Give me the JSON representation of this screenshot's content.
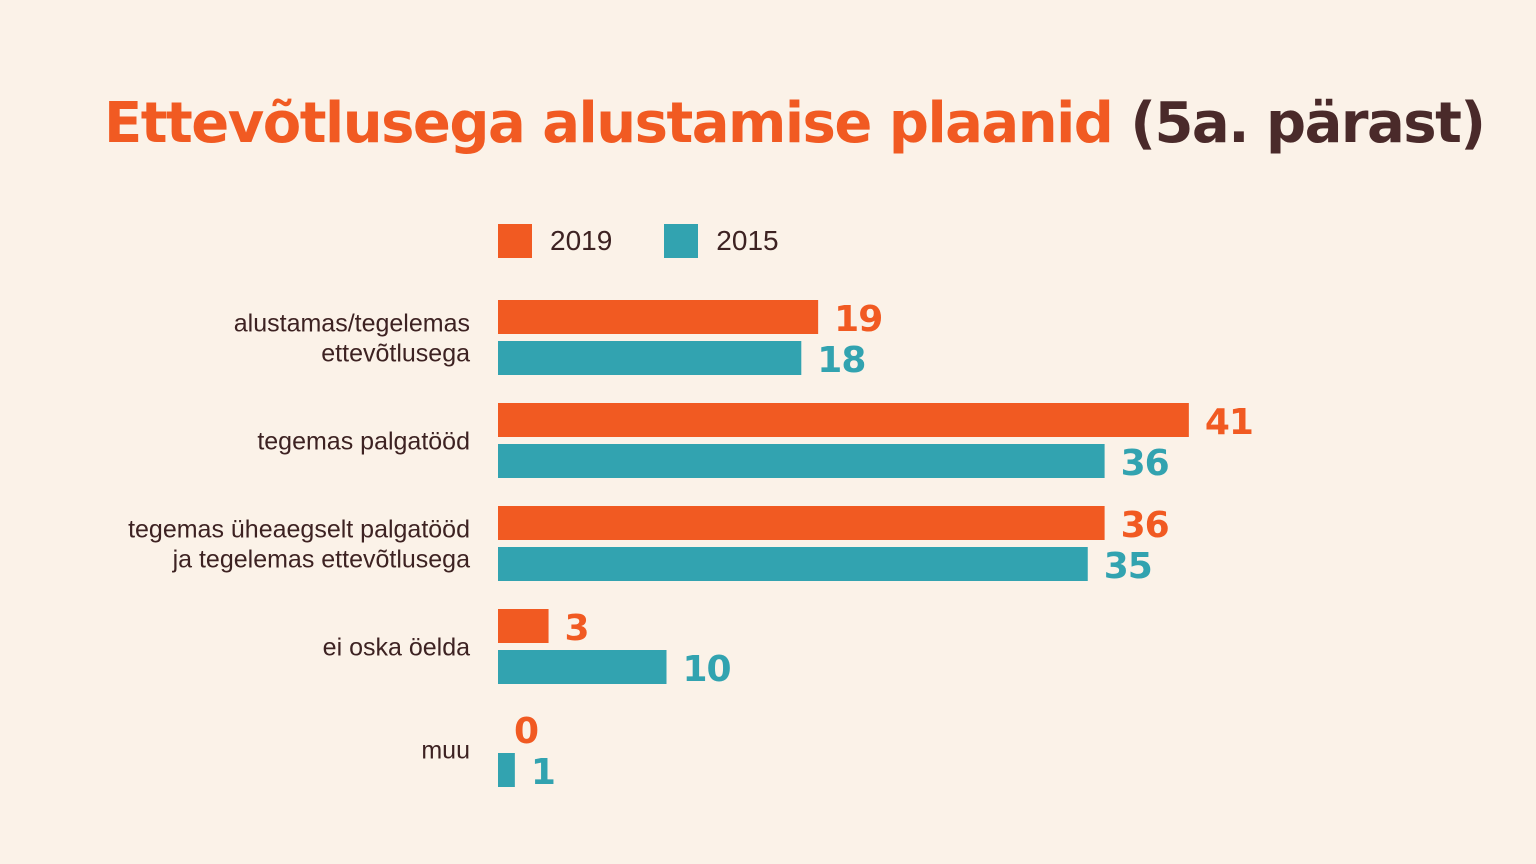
{
  "title": {
    "main": "Ettevõtlusega alustamise plaanid",
    "suffix": "(5a. pärast)"
  },
  "colors": {
    "series_2019": "#f15a22",
    "series_2015": "#32a3b0",
    "text": "#3d2222",
    "background": "#fbf2e8"
  },
  "chart_data": {
    "type": "bar",
    "orientation": "horizontal",
    "title": "Ettevõtlusega alustamise plaanid (5a. pärast)",
    "legend_position": "top",
    "grid": false,
    "xlim": [
      0,
      41
    ],
    "categories": [
      [
        "alustamas/tegelemas",
        "ettevõtlusega"
      ],
      [
        "tegemas palgatööd"
      ],
      [
        "tegemas üheaegselt palgatööd",
        "ja tegelemas ettevõtlusega"
      ],
      [
        "ei oska öelda"
      ],
      [
        "muu"
      ]
    ],
    "series": [
      {
        "name": "2019",
        "color": "#f15a22",
        "values": [
          19,
          41,
          36,
          3,
          0
        ]
      },
      {
        "name": "2015",
        "color": "#32a3b0",
        "values": [
          18,
          36,
          35,
          10,
          1
        ]
      }
    ]
  }
}
